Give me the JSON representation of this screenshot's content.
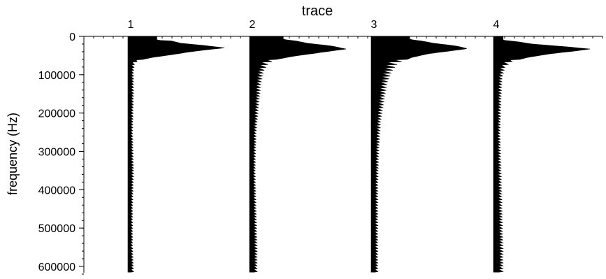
{
  "chart_data": {
    "type": "area",
    "title": "",
    "xlabel": "trace",
    "ylabel": "frequency (Hz)",
    "ylim": [
      0,
      620000
    ],
    "yticks": [
      0,
      100000,
      200000,
      300000,
      400000,
      500000,
      600000
    ],
    "ytick_labels": [
      "0",
      "100000",
      "200000",
      "300000",
      "400000",
      "500000",
      "600000"
    ],
    "categories": [
      "1",
      "2",
      "3",
      "4"
    ],
    "grid": false,
    "legend": "none",
    "fill_color": "#000000",
    "series": [
      {
        "values": [
          {
            "f": 0,
            "a": 0.3
          },
          {
            "f": 5000,
            "a": 0.3
          },
          {
            "f": 10000,
            "a": 0.3
          },
          {
            "f": 12000,
            "a": 0.45
          },
          {
            "f": 18000,
            "a": 0.55
          },
          {
            "f": 24000,
            "a": 0.8
          },
          {
            "f": 30000,
            "a": 1.0
          },
          {
            "f": 34000,
            "a": 0.85
          },
          {
            "f": 40000,
            "a": 0.65
          },
          {
            "f": 48000,
            "a": 0.45
          },
          {
            "f": 55000,
            "a": 0.25
          },
          {
            "f": 62000,
            "a": 0.12
          },
          {
            "f": 70000,
            "a": 0.07
          },
          {
            "f": 90000,
            "a": 0.06
          },
          {
            "f": 150000,
            "a": 0.06
          },
          {
            "f": 250000,
            "a": 0.05
          },
          {
            "f": 350000,
            "a": 0.06
          },
          {
            "f": 450000,
            "a": 0.05
          },
          {
            "f": 550000,
            "a": 0.05
          },
          {
            "f": 615000,
            "a": 0.06
          }
        ]
      },
      {
        "values": [
          {
            "f": 0,
            "a": 0.35
          },
          {
            "f": 8000,
            "a": 0.35
          },
          {
            "f": 12000,
            "a": 0.48
          },
          {
            "f": 18000,
            "a": 0.6
          },
          {
            "f": 25000,
            "a": 0.85
          },
          {
            "f": 33000,
            "a": 1.0
          },
          {
            "f": 38000,
            "a": 0.85
          },
          {
            "f": 45000,
            "a": 0.65
          },
          {
            "f": 52000,
            "a": 0.45
          },
          {
            "f": 60000,
            "a": 0.28
          },
          {
            "f": 70000,
            "a": 0.2
          },
          {
            "f": 90000,
            "a": 0.15
          },
          {
            "f": 120000,
            "a": 0.12
          },
          {
            "f": 170000,
            "a": 0.1
          },
          {
            "f": 250000,
            "a": 0.07
          },
          {
            "f": 350000,
            "a": 0.06
          },
          {
            "f": 450000,
            "a": 0.07
          },
          {
            "f": 550000,
            "a": 0.08
          },
          {
            "f": 615000,
            "a": 0.08
          }
        ]
      },
      {
        "values": [
          {
            "f": 0,
            "a": 0.4
          },
          {
            "f": 8000,
            "a": 0.4
          },
          {
            "f": 12000,
            "a": 0.52
          },
          {
            "f": 18000,
            "a": 0.65
          },
          {
            "f": 25000,
            "a": 0.88
          },
          {
            "f": 32000,
            "a": 1.0
          },
          {
            "f": 37000,
            "a": 0.85
          },
          {
            "f": 45000,
            "a": 0.6
          },
          {
            "f": 55000,
            "a": 0.42
          },
          {
            "f": 70000,
            "a": 0.28
          },
          {
            "f": 90000,
            "a": 0.22
          },
          {
            "f": 120000,
            "a": 0.17
          },
          {
            "f": 160000,
            "a": 0.14
          },
          {
            "f": 220000,
            "a": 0.1
          },
          {
            "f": 300000,
            "a": 0.08
          },
          {
            "f": 400000,
            "a": 0.07
          },
          {
            "f": 500000,
            "a": 0.07
          },
          {
            "f": 615000,
            "a": 0.07
          }
        ]
      },
      {
        "values": [
          {
            "f": 0,
            "a": 0.1
          },
          {
            "f": 10000,
            "a": 0.1
          },
          {
            "f": 14000,
            "a": 0.25
          },
          {
            "f": 20000,
            "a": 0.4
          },
          {
            "f": 27000,
            "a": 0.75
          },
          {
            "f": 33000,
            "a": 1.0
          },
          {
            "f": 38000,
            "a": 0.85
          },
          {
            "f": 45000,
            "a": 0.6
          },
          {
            "f": 55000,
            "a": 0.35
          },
          {
            "f": 65000,
            "a": 0.2
          },
          {
            "f": 80000,
            "a": 0.12
          },
          {
            "f": 110000,
            "a": 0.09
          },
          {
            "f": 160000,
            "a": 0.08
          },
          {
            "f": 250000,
            "a": 0.07
          },
          {
            "f": 350000,
            "a": 0.08
          },
          {
            "f": 450000,
            "a": 0.09
          },
          {
            "f": 550000,
            "a": 0.1
          },
          {
            "f": 615000,
            "a": 0.1
          }
        ]
      }
    ]
  }
}
